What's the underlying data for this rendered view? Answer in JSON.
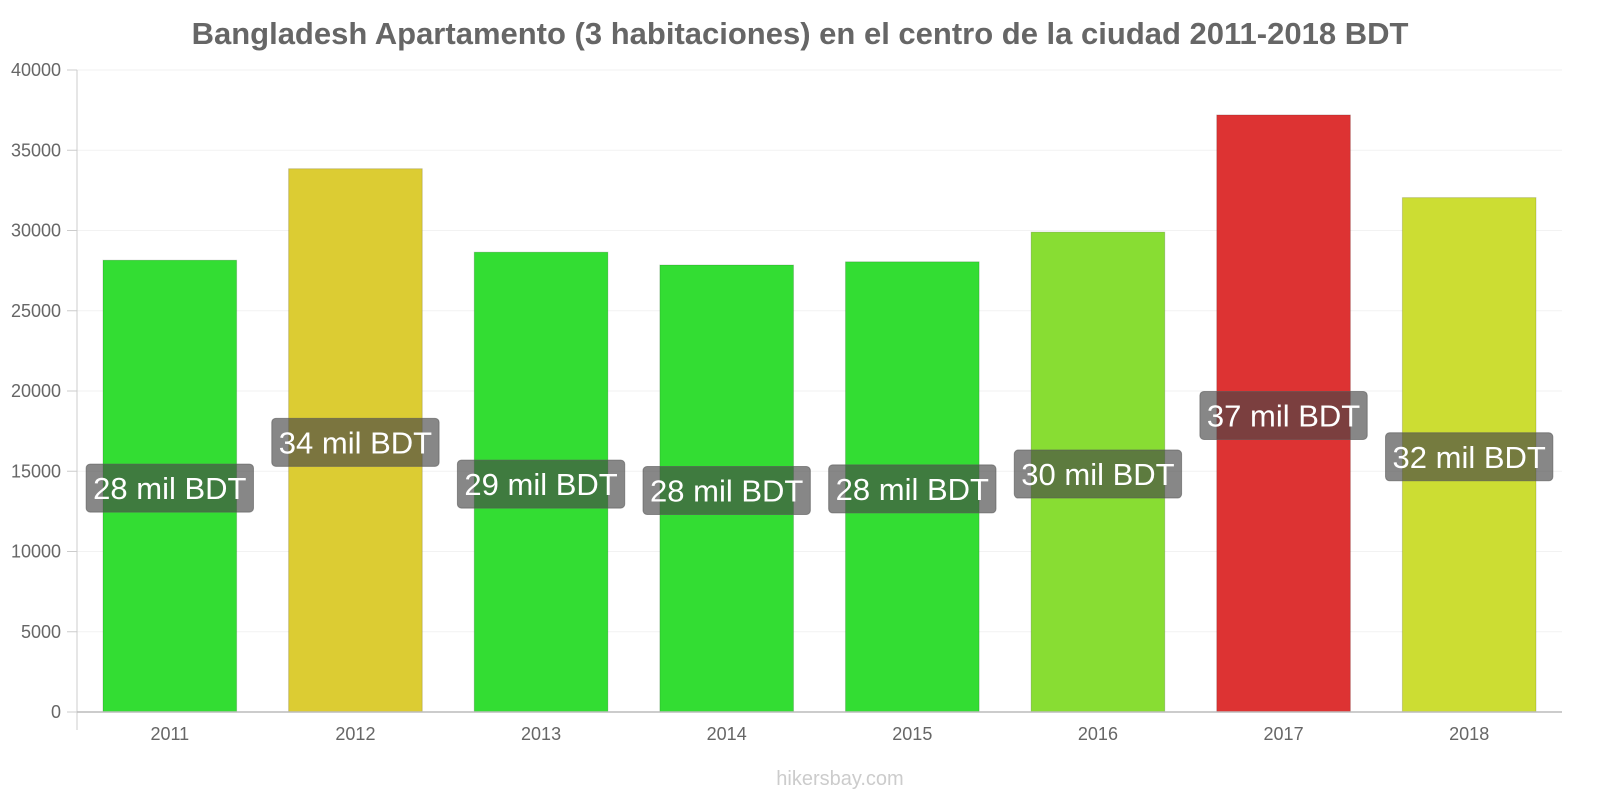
{
  "chart_data": {
    "type": "bar",
    "title": "Bangladesh Apartamento (3 habitaciones) en el centro de la ciudad 2011-2018 BDT",
    "xlabel": "",
    "ylabel": "",
    "categories": [
      "2011",
      "2012",
      "2013",
      "2014",
      "2015",
      "2016",
      "2017",
      "2018"
    ],
    "values": [
      28150,
      33850,
      28650,
      27850,
      28050,
      29900,
      37200,
      32050
    ],
    "data_labels": [
      "28 mil BDT",
      "34 mil BDT",
      "29 mil BDT",
      "28 mil BDT",
      "28 mil BDT",
      "30 mil BDT",
      "37 mil BDT",
      "32 mil BDT"
    ],
    "bar_colors": [
      "#33dd33",
      "#dccc33",
      "#33dd33",
      "#33dd33",
      "#33dd33",
      "#88dd33",
      "#dd3333",
      "#ccdd33"
    ],
    "ylim": [
      0,
      40000
    ],
    "yticks": [
      "0",
      "5000",
      "10000",
      "15000",
      "20000",
      "25000",
      "30000",
      "35000",
      "40000"
    ],
    "grid": true,
    "legend": "none"
  },
  "watermark": "hikersbay.com"
}
